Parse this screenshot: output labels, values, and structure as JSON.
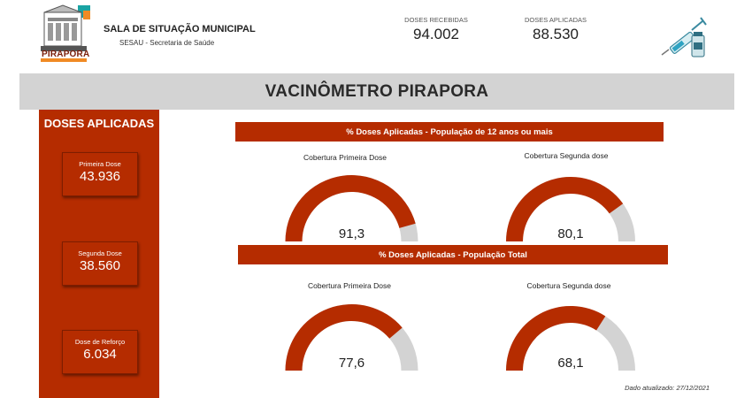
{
  "header": {
    "org_title": "SALA DE SITUAÇÃO MUNICIPAL",
    "org_subtitle": "SESAU - Secretaria de Saúde",
    "logo_text": "PIRAPORA",
    "kpis": [
      {
        "label": "DOSES RECEBIDAS",
        "value": "94.002"
      },
      {
        "label": "DOSES APLICADAS",
        "value": "88.530"
      }
    ]
  },
  "banner": {
    "title": "VACINÔMETRO PIRAPORA"
  },
  "sidebar": {
    "title": "DOSES APLICADAS",
    "cards": [
      {
        "label": "Primeira Dose",
        "value": "43.936"
      },
      {
        "label": "Segunda Dose",
        "value": "38.560"
      },
      {
        "label": "Dose de Reforço",
        "value": "6.034"
      }
    ]
  },
  "sections": [
    {
      "title": "% Doses Aplicadas - População de 12 anos ou mais",
      "gauges": [
        {
          "title": "Cobertura Primeira Dose",
          "value": 91.3,
          "value_label": "91,3"
        },
        {
          "title": "Cobertura Segunda dose",
          "value": 80.1,
          "value_label": "80,1"
        }
      ]
    },
    {
      "title": "% Doses Aplicadas - População Total",
      "gauges": [
        {
          "title": "Cobertura Primeira Dose",
          "value": 77.6,
          "value_label": "77,6"
        },
        {
          "title": "Cobertura Segunda dose",
          "value": 68.1,
          "value_label": "68,1"
        }
      ]
    }
  ],
  "colors": {
    "accent": "#b52c00",
    "gauge_track": "#d3d3d3",
    "banner": "#d3d3d3"
  },
  "footer": {
    "updated": "Dado atualizado: 27/12/2021"
  }
}
